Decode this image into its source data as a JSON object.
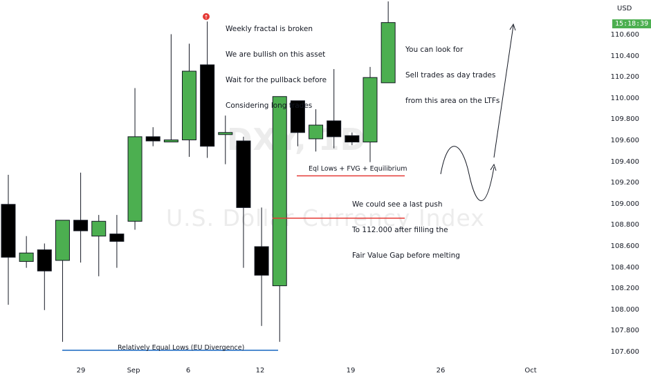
{
  "watermark": {
    "symbol": "DXY, 1D",
    "name": "U.S. Dollar Currency Index"
  },
  "currency": "USD",
  "countdown": "15:18:39",
  "colors": {
    "up": "#4caf50",
    "down": "#000000",
    "red_line": "#e53935",
    "blue_line": "#1565c0",
    "marker": "#e53935",
    "countdown_bg": "#4caf50"
  },
  "annotations": {
    "weekly": [
      "Weekly fractal is broken",
      "We are bullish on this asset",
      "Wait for the pullback before",
      "Considering long trades"
    ],
    "sell": [
      "You can look for",
      "Sell trades as day trades",
      "from this area on the LTFs"
    ],
    "push": [
      "We could see a last push",
      "To 112.000 after filling the",
      "Fair Value Gap before melting"
    ],
    "eql_label": "Eql Lows + FVG + Equilibrium",
    "rel_label": "Relatively Equal Lows (EU Divergence)",
    "fractal_mark": "↑"
  },
  "chart_data": {
    "type": "candlestick",
    "title": "",
    "y_ticks": [
      "110.600",
      "110.400",
      "110.200",
      "110.000",
      "109.800",
      "109.600",
      "109.400",
      "109.200",
      "109.000",
      "108.800",
      "108.600",
      "108.400",
      "108.200",
      "108.000",
      "107.800",
      "107.600"
    ],
    "x_ticks": [
      "29",
      "Sep",
      "6",
      "12",
      "19",
      "26",
      "Oct"
    ],
    "ylim": [
      107.5,
      110.95
    ],
    "candles": [
      {
        "o": 109.0,
        "h": 109.28,
        "l": 108.05,
        "c": 108.5
      },
      {
        "o": 108.46,
        "h": 108.7,
        "l": 108.4,
        "c": 108.54
      },
      {
        "o": 108.57,
        "h": 108.63,
        "l": 108.0,
        "c": 108.37
      },
      {
        "o": 108.47,
        "h": 108.82,
        "l": 107.7,
        "c": 108.85
      },
      {
        "o": 108.85,
        "h": 109.3,
        "l": 108.45,
        "c": 108.75
      },
      {
        "o": 108.7,
        "h": 108.9,
        "l": 108.32,
        "c": 108.84
      },
      {
        "o": 108.72,
        "h": 108.9,
        "l": 108.4,
        "c": 108.65
      },
      {
        "o": 108.84,
        "h": 110.1,
        "l": 108.76,
        "c": 109.64
      },
      {
        "o": 109.64,
        "h": 109.73,
        "l": 109.55,
        "c": 109.6
      },
      {
        "o": 109.61,
        "h": 110.61,
        "l": 109.61,
        "c": 109.61
      },
      {
        "o": 109.61,
        "h": 110.52,
        "l": 109.45,
        "c": 110.26
      },
      {
        "o": 110.32,
        "h": 110.73,
        "l": 109.44,
        "c": 109.55
      },
      {
        "o": 109.68,
        "h": 109.84,
        "l": 109.38,
        "c": 109.68
      },
      {
        "o": 109.6,
        "h": 109.64,
        "l": 108.4,
        "c": 108.97
      },
      {
        "o": 108.6,
        "h": 108.97,
        "l": 107.85,
        "c": 108.33
      },
      {
        "o": 108.23,
        "h": 110.02,
        "l": 107.7,
        "c": 110.02
      },
      {
        "o": 109.98,
        "h": 109.98,
        "l": 109.55,
        "c": 109.68
      },
      {
        "o": 109.62,
        "h": 109.9,
        "l": 109.5,
        "c": 109.75
      },
      {
        "o": 109.79,
        "h": 110.28,
        "l": 109.53,
        "c": 109.64
      },
      {
        "o": 109.65,
        "h": 109.68,
        "l": 109.56,
        "c": 109.59
      },
      {
        "o": 109.59,
        "h": 110.3,
        "l": 109.4,
        "c": 110.2
      },
      {
        "o": 110.15,
        "h": 110.92,
        "l": 110.15,
        "c": 110.72
      }
    ],
    "horizontal_levels": [
      {
        "value": 109.27,
        "label": "Eql Lows + FVG + Equilibrium",
        "color": "#e53935"
      },
      {
        "value": 108.87,
        "color": "#e53935"
      },
      {
        "value": 107.62,
        "label": "Relatively Equal Lows (EU Divergence)",
        "color": "#1565c0"
      }
    ],
    "grid": false
  }
}
